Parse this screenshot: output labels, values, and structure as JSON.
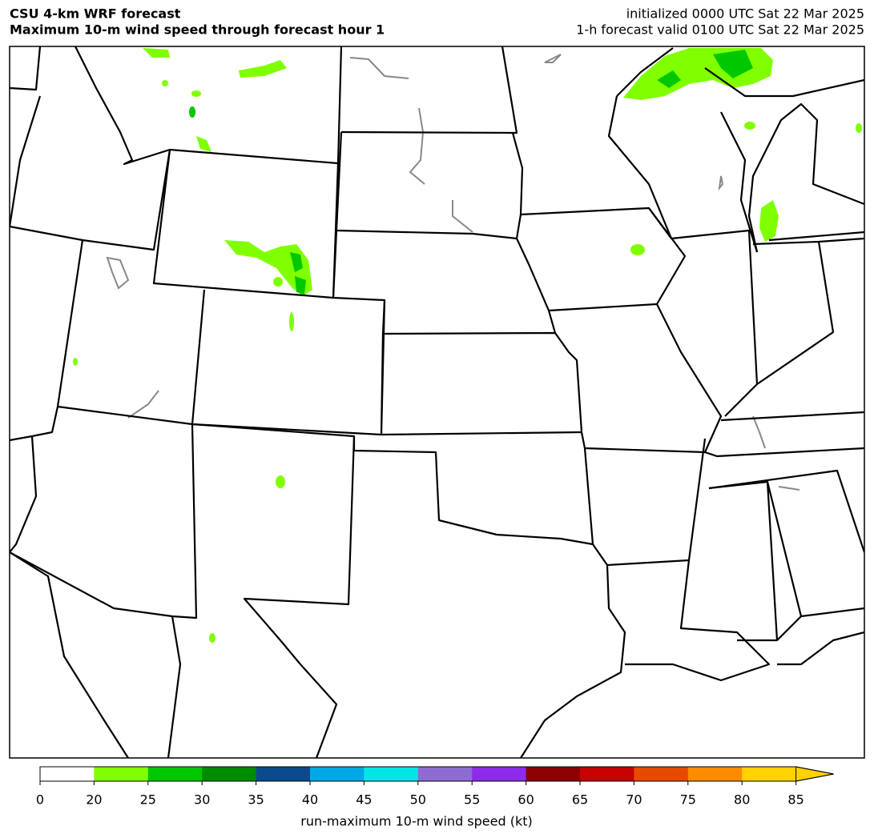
{
  "header": {
    "title_left": [
      "CSU 4-km WRF forecast",
      "Maximum 10-m wind speed through forecast hour 1"
    ],
    "title_right": [
      "initialized 0000 UTC Sat 22 Mar 2025",
      "1-h forecast valid 0100 UTC Sat 22 Mar 2025"
    ]
  },
  "colorbar": {
    "label": "run-maximum 10-m wind speed (kt)",
    "ticks": [
      0,
      20,
      25,
      30,
      35,
      40,
      45,
      50,
      55,
      60,
      65,
      70,
      75,
      80,
      85
    ],
    "colors": [
      "#ffffff",
      "#80ff00",
      "#00c800",
      "#008c00",
      "#0a4a8c",
      "#00a8e6",
      "#00e6e6",
      "#8c6cd0",
      "#8c2ce8",
      "#8c0000",
      "#c80000",
      "#e64a00",
      "#ff8c00",
      "#ffd200"
    ],
    "extend_color": "#ffd200"
  }
}
